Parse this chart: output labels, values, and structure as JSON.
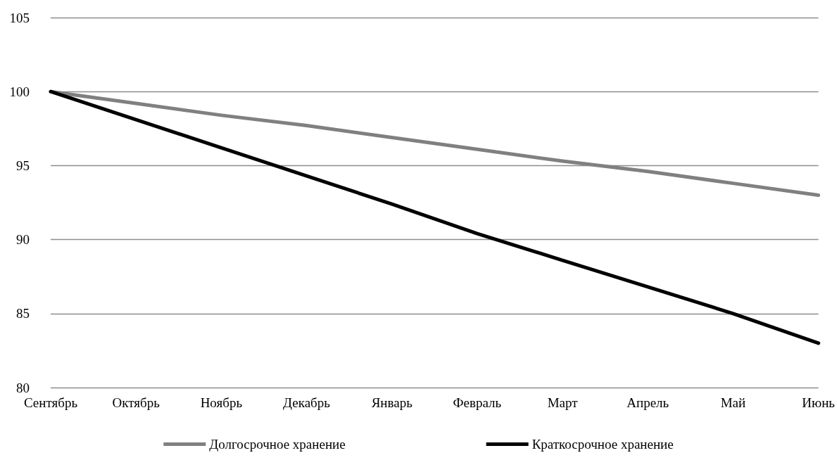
{
  "chart_data": {
    "type": "line",
    "categories": [
      "Сентябрь",
      "Октябрь",
      "Ноябрь",
      "Декабрь",
      "Январь",
      "Февраль",
      "Март",
      "Апрель",
      "Май",
      "Июнь"
    ],
    "series": [
      {
        "name": "Долгосрочное хранение",
        "color": "#808080",
        "values": [
          100,
          99.2,
          98.4,
          97.7,
          96.9,
          96.1,
          95.3,
          94.6,
          93.8,
          93
        ]
      },
      {
        "name": "Краткосрочное хранение",
        "color": "#000000",
        "values": [
          100,
          98.1,
          96.2,
          94.3,
          92.4,
          90.4,
          88.6,
          86.8,
          85,
          83
        ]
      }
    ],
    "ylim": [
      80,
      105
    ],
    "yticks": [
      80,
      85,
      90,
      95,
      100,
      105
    ],
    "grid": "y",
    "legend": "bottom",
    "marker": "none",
    "line_style": "solid"
  }
}
